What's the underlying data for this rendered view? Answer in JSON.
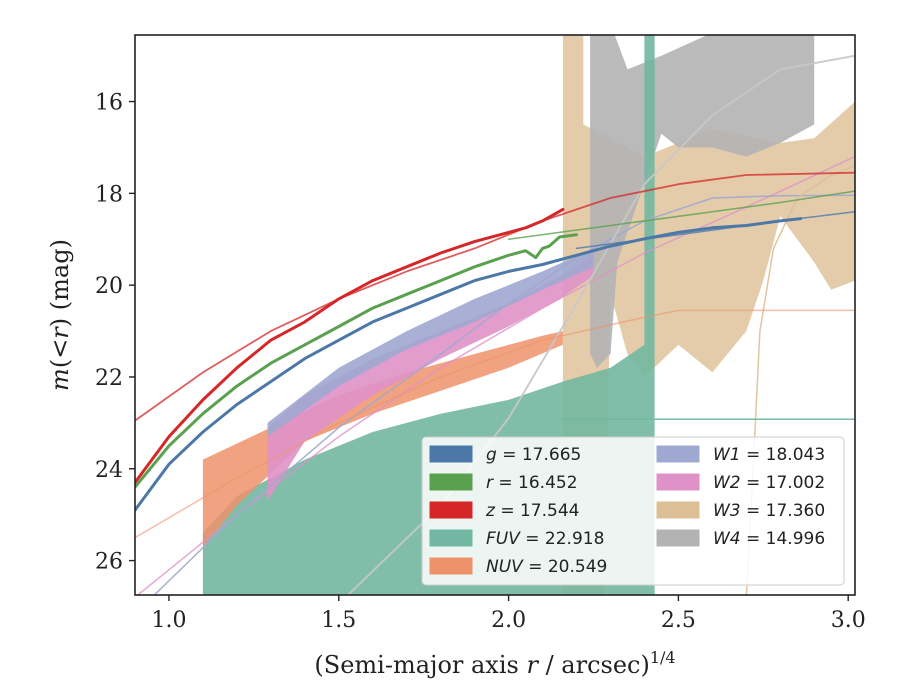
{
  "chart_data": {
    "type": "area",
    "xlabel_html": [
      "(Semi-major axis ",
      "r",
      " / arcsec)",
      "1/4"
    ],
    "ylabel_parts": [
      "m",
      "(<",
      "r",
      ") (mag)"
    ],
    "xlim": [
      0.9,
      3.02
    ],
    "ylim": [
      26.75,
      14.55
    ],
    "y_inverted": true,
    "grid": false,
    "legend_placement": "lower-right",
    "xticks": [
      {
        "v": 1.0,
        "label": "1.0"
      },
      {
        "v": 1.5,
        "label": "1.5"
      },
      {
        "v": 2.0,
        "label": "2.0"
      },
      {
        "v": 2.5,
        "label": "2.5"
      },
      {
        "v": 3.0,
        "label": "3.0"
      }
    ],
    "yticks": [
      {
        "v": 16,
        "label": "16"
      },
      {
        "v": 18,
        "label": "18"
      },
      {
        "v": 20,
        "label": "20"
      },
      {
        "v": 22,
        "label": "22"
      },
      {
        "v": 24,
        "label": "24"
      },
      {
        "v": 26,
        "label": "26"
      }
    ],
    "legend": [
      {
        "band": "g",
        "value": "17.665",
        "color": "#4c78a8"
      },
      {
        "band": "r",
        "value": "16.452",
        "color": "#59a14f"
      },
      {
        "band": "z",
        "value": "17.544",
        "color": "#d62728"
      },
      {
        "band": "FUV",
        "value": "22.918",
        "color": "#72b7a1"
      },
      {
        "band": "NUV",
        "value": "20.549",
        "color": "#ee926b"
      },
      {
        "band": "W1",
        "value": "18.043",
        "color": "#9fa8d0"
      },
      {
        "band": "W2",
        "value": "17.002",
        "color": "#df92c8"
      },
      {
        "band": "W3",
        "value": "17.360",
        "color": "#ddbf96"
      },
      {
        "band": "W4",
        "value": "14.996",
        "color": "#b3b3b3"
      }
    ],
    "series": [
      {
        "name": "W3",
        "kind": "band",
        "color": "#ddbf96",
        "opacity": 0.8,
        "upper": [
          [
            2.16,
            14.5
          ],
          [
            2.22,
            14.5
          ],
          [
            2.22,
            16.5
          ],
          [
            2.4,
            17.2
          ],
          [
            2.6,
            16.6
          ],
          [
            2.8,
            16.9
          ],
          [
            2.9,
            16.8
          ],
          [
            3.02,
            16.0
          ]
        ],
        "lower": [
          [
            3.02,
            19.9
          ],
          [
            2.95,
            20.1
          ],
          [
            2.9,
            19.5
          ],
          [
            2.8,
            18.5
          ],
          [
            2.75,
            19.9
          ],
          [
            2.7,
            21.0
          ],
          [
            2.6,
            21.9
          ],
          [
            2.5,
            21.3
          ],
          [
            2.4,
            22.0
          ],
          [
            2.35,
            21.5
          ],
          [
            2.3,
            20.2
          ],
          [
            2.28,
            26.8
          ],
          [
            2.22,
            26.8
          ],
          [
            2.22,
            26.8
          ],
          [
            2.16,
            26.8
          ]
        ]
      },
      {
        "name": "W4",
        "kind": "band",
        "color": "#b3b3b3",
        "opacity": 0.9,
        "upper": [
          [
            2.24,
            14.5
          ],
          [
            2.31,
            14.5
          ],
          [
            2.35,
            15.3
          ],
          [
            2.45,
            15.0
          ],
          [
            2.6,
            14.5
          ],
          [
            2.9,
            14.5
          ]
        ],
        "lower": [
          [
            2.9,
            16.5
          ],
          [
            2.8,
            16.9
          ],
          [
            2.7,
            17.2
          ],
          [
            2.6,
            17.0
          ],
          [
            2.5,
            17.0
          ],
          [
            2.45,
            16.7
          ],
          [
            2.32,
            19.5
          ],
          [
            2.3,
            21.5
          ],
          [
            2.26,
            21.8
          ],
          [
            2.24,
            21.5
          ]
        ]
      },
      {
        "name": "FUV",
        "kind": "band",
        "color": "#72b7a1",
        "opacity": 0.9,
        "upper": [
          [
            1.1,
            25.4
          ],
          [
            1.2,
            24.6
          ],
          [
            1.4,
            23.8
          ],
          [
            1.6,
            23.2
          ],
          [
            1.8,
            22.8
          ],
          [
            2.0,
            22.5
          ],
          [
            2.16,
            22.1
          ],
          [
            2.3,
            21.8
          ],
          [
            2.4,
            21.3
          ],
          [
            2.4,
            14.5
          ],
          [
            2.43,
            14.5
          ],
          [
            2.43,
            26.8
          ]
        ],
        "lower": [
          [
            2.43,
            26.8
          ],
          [
            2.25,
            26.8
          ],
          [
            2.2,
            26.8
          ],
          [
            1.1,
            26.8
          ]
        ]
      },
      {
        "name": "NUV",
        "kind": "band",
        "color": "#ee926b",
        "opacity": 0.85,
        "upper": [
          [
            1.1,
            23.8
          ],
          [
            1.3,
            23.1
          ],
          [
            1.5,
            22.4
          ],
          [
            1.7,
            21.9
          ],
          [
            1.9,
            21.5
          ],
          [
            2.1,
            21.1
          ],
          [
            2.16,
            21.0
          ]
        ],
        "lower": [
          [
            2.16,
            21.3
          ],
          [
            2.0,
            21.8
          ],
          [
            1.8,
            22.3
          ],
          [
            1.6,
            22.8
          ],
          [
            1.4,
            23.4
          ],
          [
            1.2,
            24.8
          ],
          [
            1.1,
            25.7
          ]
        ]
      },
      {
        "name": "W2",
        "kind": "band",
        "color": "#df92c8",
        "opacity": 0.9,
        "upper": [
          [
            1.29,
            23.1
          ],
          [
            1.4,
            22.4
          ],
          [
            1.6,
            21.6
          ],
          [
            1.8,
            21.0
          ],
          [
            2.0,
            20.4
          ],
          [
            2.1,
            20.0
          ],
          [
            2.2,
            19.6
          ],
          [
            2.25,
            19.3
          ]
        ],
        "lower": [
          [
            2.25,
            19.8
          ],
          [
            2.15,
            20.3
          ],
          [
            2.0,
            20.9
          ],
          [
            1.8,
            21.6
          ],
          [
            1.6,
            22.4
          ],
          [
            1.4,
            23.4
          ],
          [
            1.29,
            24.7
          ]
        ]
      },
      {
        "name": "W1",
        "kind": "band",
        "color": "#9fa8d0",
        "opacity": 0.9,
        "upper": [
          [
            1.29,
            23.0
          ],
          [
            1.5,
            21.8
          ],
          [
            1.7,
            21.0
          ],
          [
            1.9,
            20.3
          ],
          [
            2.1,
            19.7
          ],
          [
            2.25,
            19.2
          ]
        ],
        "lower": [
          [
            2.25,
            19.6
          ],
          [
            2.1,
            20.1
          ],
          [
            1.9,
            20.8
          ],
          [
            1.7,
            21.4
          ],
          [
            1.5,
            22.2
          ],
          [
            1.29,
            23.3
          ]
        ]
      },
      {
        "name": "W2",
        "kind": "line",
        "color": "#df92c8",
        "width": 1.5,
        "opacity": 0.8,
        "points": [
          [
            0.9,
            26.8
          ],
          [
            1.2,
            25.0
          ],
          [
            1.5,
            23.3
          ],
          [
            1.8,
            21.8
          ],
          [
            2.1,
            20.5
          ],
          [
            2.4,
            19.3
          ],
          [
            2.7,
            18.3
          ],
          [
            3.02,
            17.2
          ]
        ]
      },
      {
        "name": "W1",
        "kind": "line",
        "color": "#9fa8d0",
        "width": 1.5,
        "opacity": 0.9,
        "points": [
          [
            0.95,
            26.8
          ],
          [
            1.2,
            25.0
          ],
          [
            1.5,
            23.1
          ],
          [
            1.8,
            21.5
          ],
          [
            2.0,
            20.4
          ],
          [
            2.2,
            19.4
          ],
          [
            2.4,
            18.6
          ],
          [
            2.6,
            18.1
          ],
          [
            2.8,
            18.05
          ],
          [
            3.02,
            18.04
          ]
        ]
      },
      {
        "name": "W4",
        "kind": "line",
        "color": "#c8c8c8",
        "width": 2,
        "opacity": 0.9,
        "points": [
          [
            1.52,
            26.8
          ],
          [
            1.8,
            24.8
          ],
          [
            2.0,
            22.9
          ],
          [
            2.2,
            20.4
          ],
          [
            2.4,
            17.8
          ],
          [
            2.6,
            16.3
          ],
          [
            2.8,
            15.3
          ],
          [
            3.02,
            15.0
          ]
        ]
      },
      {
        "name": "W3",
        "kind": "line",
        "color": "#ddbf96",
        "width": 1.5,
        "opacity": 0.9,
        "points": [
          [
            2.7,
            26.8
          ],
          [
            2.72,
            24.0
          ],
          [
            2.74,
            21.0
          ],
          [
            2.78,
            19.2
          ],
          [
            2.85,
            18.1
          ],
          [
            2.95,
            17.6
          ],
          [
            3.02,
            17.4
          ]
        ]
      },
      {
        "name": "FUV",
        "kind": "line",
        "color": "#72b7a1",
        "width": 1.5,
        "opacity": 0.8,
        "points": [
          [
            2.16,
            22.92
          ],
          [
            2.5,
            22.92
          ],
          [
            3.02,
            22.92
          ]
        ]
      },
      {
        "name": "NUV",
        "kind": "line",
        "color": "#ee926b",
        "width": 1.5,
        "opacity": 0.6,
        "points": [
          [
            0.9,
            25.5
          ],
          [
            1.2,
            24.2
          ],
          [
            1.5,
            23.0
          ],
          [
            1.8,
            22.0
          ],
          [
            2.1,
            21.2
          ],
          [
            2.4,
            20.7
          ],
          [
            2.5,
            20.55
          ],
          [
            3.02,
            20.55
          ]
        ]
      },
      {
        "name": "z",
        "kind": "line",
        "color": "#d62728",
        "width": 1.8,
        "opacity": 0.75,
        "points": [
          [
            0.9,
            22.95
          ],
          [
            1.1,
            21.9
          ],
          [
            1.3,
            21.0
          ],
          [
            1.5,
            20.3
          ],
          [
            1.7,
            19.7
          ],
          [
            1.9,
            19.2
          ],
          [
            2.1,
            18.6
          ],
          [
            2.3,
            18.1
          ],
          [
            2.5,
            17.8
          ],
          [
            2.7,
            17.6
          ],
          [
            3.02,
            17.55
          ]
        ]
      },
      {
        "name": "g",
        "kind": "line",
        "color": "#4c78a8",
        "width": 3,
        "opacity": 1,
        "points": [
          [
            0.9,
            24.9
          ],
          [
            1.0,
            23.9
          ],
          [
            1.1,
            23.2
          ],
          [
            1.2,
            22.6
          ],
          [
            1.3,
            22.1
          ],
          [
            1.4,
            21.6
          ],
          [
            1.5,
            21.2
          ],
          [
            1.6,
            20.8
          ],
          [
            1.7,
            20.5
          ],
          [
            1.8,
            20.2
          ],
          [
            1.9,
            19.9
          ],
          [
            2.0,
            19.7
          ],
          [
            2.1,
            19.55
          ],
          [
            2.2,
            19.35
          ],
          [
            2.3,
            19.15
          ],
          [
            2.4,
            18.99
          ],
          [
            2.5,
            18.85
          ],
          [
            2.6,
            18.75
          ],
          [
            2.7,
            18.7
          ],
          [
            2.8,
            18.6
          ],
          [
            2.86,
            18.55
          ]
        ]
      },
      {
        "name": "g",
        "kind": "line",
        "color": "#4c78a8",
        "width": 1.5,
        "opacity": 0.8,
        "points": [
          [
            2.2,
            19.2
          ],
          [
            2.5,
            18.9
          ],
          [
            2.8,
            18.6
          ],
          [
            3.02,
            18.4
          ]
        ]
      },
      {
        "name": "r",
        "kind": "line",
        "color": "#59a14f",
        "width": 3,
        "opacity": 1,
        "points": [
          [
            0.9,
            24.4
          ],
          [
            1.0,
            23.5
          ],
          [
            1.1,
            22.8
          ],
          [
            1.2,
            22.2
          ],
          [
            1.3,
            21.7
          ],
          [
            1.4,
            21.3
          ],
          [
            1.5,
            20.9
          ],
          [
            1.6,
            20.5
          ],
          [
            1.7,
            20.2
          ],
          [
            1.8,
            19.9
          ],
          [
            1.9,
            19.6
          ],
          [
            2.0,
            19.35
          ],
          [
            2.05,
            19.25
          ],
          [
            2.08,
            19.4
          ],
          [
            2.1,
            19.2
          ],
          [
            2.12,
            19.15
          ],
          [
            2.15,
            18.95
          ],
          [
            2.2,
            18.9
          ]
        ]
      },
      {
        "name": "r",
        "kind": "line",
        "color": "#59a14f",
        "width": 1.5,
        "opacity": 0.8,
        "points": [
          [
            2.0,
            19.0
          ],
          [
            2.3,
            18.7
          ],
          [
            2.6,
            18.4
          ],
          [
            2.8,
            18.2
          ],
          [
            3.02,
            17.95
          ]
        ]
      },
      {
        "name": "z",
        "kind": "line",
        "color": "#d62728",
        "width": 3,
        "opacity": 1,
        "points": [
          [
            0.9,
            24.3
          ],
          [
            1.0,
            23.3
          ],
          [
            1.1,
            22.5
          ],
          [
            1.2,
            21.8
          ],
          [
            1.3,
            21.2
          ],
          [
            1.4,
            20.8
          ],
          [
            1.5,
            20.3
          ],
          [
            1.6,
            19.9
          ],
          [
            1.7,
            19.6
          ],
          [
            1.8,
            19.3
          ],
          [
            1.9,
            19.05
          ],
          [
            2.0,
            18.85
          ],
          [
            2.05,
            18.75
          ],
          [
            2.1,
            18.6
          ],
          [
            2.16,
            18.35
          ]
        ]
      },
      {
        "name": "FUV",
        "kind": "line",
        "color": "#72b7a1",
        "width": 1.5,
        "opacity": 0.8,
        "points": [
          [
            2.43,
            22.92
          ],
          [
            3.02,
            22.92
          ]
        ]
      }
    ]
  }
}
